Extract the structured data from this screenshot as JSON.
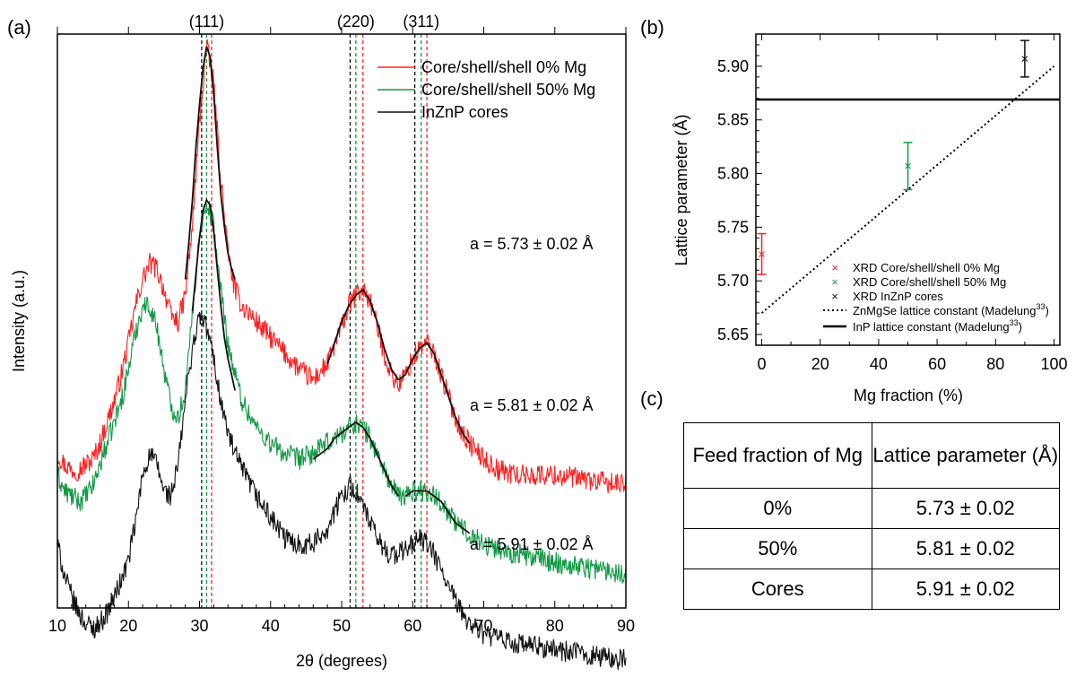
{
  "panel_labels": {
    "a": "(a)",
    "b": "(b)",
    "c": "(c)"
  },
  "colors": {
    "red": "#ff2020",
    "green": "#119944",
    "black": "#111111"
  },
  "chart_data": [
    {
      "type": "line",
      "panel": "(a)",
      "xlabel": "2θ (degrees)",
      "ylabel": "Intensity (a.u.)",
      "xlim": [
        10,
        90
      ],
      "x_ticks": [
        10,
        20,
        30,
        40,
        50,
        60,
        70,
        80,
        90
      ],
      "y_tick_labels": false,
      "top_labels": [
        "(111)",
        "(220)",
        "(311)"
      ],
      "reference_lines": {
        "black": [
          30.3,
          51.2,
          60.3
        ],
        "green": [
          31.0,
          52.0,
          61.2
        ],
        "red": [
          31.7,
          53.0,
          62.0
        ]
      },
      "legend": {
        "placement": "top-right",
        "entries": [
          "Core/shell/shell 0% Mg",
          "Core/shell/shell 50% Mg",
          "InZnP cores"
        ]
      },
      "annotations": [
        "a = 5.73 ± 0.02 Å",
        "a = 5.81 ± 0.02 Å",
        "a = 5.91 ± 0.02 Å"
      ],
      "series": [
        {
          "name": "Core/shell/shell 0% Mg",
          "color": "red",
          "noise": 1.3,
          "x": [
            10,
            11,
            12,
            13,
            14,
            15,
            16,
            17,
            18,
            19,
            20,
            21,
            22,
            23,
            24,
            25,
            26,
            27,
            28,
            29,
            30,
            31,
            32,
            33,
            34,
            35,
            36,
            38,
            40,
            42,
            44,
            46,
            48,
            50,
            51,
            52,
            53,
            54,
            55,
            56,
            57,
            58,
            59,
            60,
            61,
            62,
            63,
            64,
            65,
            66,
            67,
            68,
            70,
            72,
            75,
            80,
            85,
            90
          ],
          "y": [
            22,
            20,
            19,
            19,
            20,
            21,
            24,
            28,
            32,
            37,
            43,
            50,
            55,
            58,
            57,
            53,
            48,
            47,
            52,
            65,
            85,
            99,
            92,
            74,
            60,
            53,
            50,
            47,
            44,
            41,
            38,
            36,
            39,
            46,
            50,
            52,
            53,
            51,
            46,
            41,
            37,
            35,
            37,
            40,
            42,
            43,
            41,
            37,
            33,
            29,
            26,
            24,
            21,
            19,
            18,
            18,
            17,
            16
          ]
        },
        {
          "name": "Core/shell/shell 50% Mg",
          "color": "green",
          "noise": 1.3,
          "x": [
            10,
            11,
            12,
            13,
            14,
            15,
            16,
            17,
            18,
            19,
            20,
            21,
            22,
            23,
            24,
            25,
            26,
            27,
            28,
            29,
            30,
            31,
            32,
            33,
            34,
            35,
            36,
            38,
            40,
            42,
            44,
            46,
            48,
            50,
            51,
            52,
            53,
            54,
            55,
            56,
            57,
            58,
            59,
            60,
            61,
            62,
            63,
            64,
            65,
            66,
            67,
            68,
            70,
            72,
            75,
            80,
            85,
            90
          ],
          "y": [
            18,
            15,
            14,
            13,
            14,
            16,
            20,
            24,
            28,
            32,
            38,
            45,
            50,
            50,
            46,
            38,
            31,
            29,
            34,
            48,
            64,
            70,
            65,
            53,
            43,
            37,
            32,
            27,
            24,
            22,
            21,
            22,
            24,
            26,
            27,
            28,
            27,
            25,
            22,
            19,
            16,
            14,
            14,
            15,
            15,
            15,
            14,
            13,
            11,
            9,
            8,
            7,
            5,
            4,
            3,
            1.5,
            0.5,
            -0.5
          ]
        },
        {
          "name": "InZnP cores",
          "color": "black",
          "noise": 1.3,
          "x": [
            10,
            11,
            12,
            13,
            14,
            15,
            16,
            17,
            18,
            19,
            20,
            21,
            22,
            23,
            24,
            25,
            26,
            27,
            28,
            29,
            30,
            31,
            32,
            33,
            34,
            35,
            36,
            38,
            40,
            42,
            44,
            46,
            48,
            50,
            51,
            52,
            53,
            54,
            55,
            56,
            57,
            58,
            59,
            60,
            61,
            62,
            63,
            64,
            65,
            66,
            67,
            68,
            70,
            72,
            75,
            80,
            85,
            90
          ],
          "y": [
            5,
            -1,
            -5,
            -8,
            -10,
            -11,
            -10,
            -8,
            -5,
            -2,
            2,
            9,
            18,
            22,
            20,
            15,
            14,
            20,
            32,
            42,
            48,
            46,
            40,
            32,
            26,
            22,
            19,
            14,
            10,
            6,
            5,
            5,
            8,
            14,
            16,
            15,
            12,
            9,
            6,
            4,
            3,
            3,
            4,
            5,
            6,
            5,
            3,
            0,
            -3,
            -6,
            -8,
            -10,
            -12,
            -13,
            -14,
            -15,
            -16,
            -17
          ]
        }
      ],
      "fits": [
        {
          "color": "black",
          "x": [
            28,
            28.5,
            29,
            29.5,
            30,
            30.5,
            31,
            31.5,
            32,
            32.5,
            33,
            33.5,
            34,
            34.5,
            35
          ],
          "y": [
            55,
            62,
            70,
            80,
            88,
            95,
            99,
            97,
            90,
            80,
            71,
            65,
            60,
            57,
            55
          ]
        },
        {
          "color": "black",
          "x": [
            48,
            49,
            50,
            51,
            52,
            53,
            54,
            55,
            56,
            57,
            58
          ],
          "y": [
            39,
            43,
            47,
            50,
            52,
            53,
            51,
            47,
            42,
            38,
            36
          ]
        },
        {
          "color": "black",
          "x": [
            58,
            59,
            60,
            61,
            62,
            63,
            64,
            65,
            66,
            67,
            68
          ],
          "y": [
            36,
            37,
            40,
            42,
            43,
            41,
            37,
            33,
            29,
            26,
            24
          ]
        },
        {
          "color": "black",
          "x": [
            29,
            29.5,
            30,
            30.5,
            31,
            31.5,
            32,
            32.5,
            33,
            33.5,
            34,
            34.5,
            35
          ],
          "y": [
            49,
            56,
            63,
            68,
            70,
            69,
            64,
            57,
            50,
            44,
            40,
            37,
            34
          ]
        },
        {
          "color": "black",
          "x": [
            46,
            47,
            48,
            49,
            50,
            51,
            52,
            53,
            54,
            55,
            56,
            57,
            58
          ],
          "y": [
            21,
            22,
            23,
            25,
            26,
            27,
            28,
            27,
            25,
            22,
            19,
            16,
            14
          ]
        },
        {
          "color": "black",
          "x": [
            59,
            60,
            61,
            62,
            63,
            64,
            65,
            66,
            67,
            68
          ],
          "y": [
            14,
            15,
            15,
            15,
            14,
            13,
            11,
            9,
            8,
            7
          ]
        }
      ]
    },
    {
      "type": "scatter",
      "panel": "(b)",
      "xlabel": "Mg fraction (%)",
      "ylabel": "Lattice parameter (Å)",
      "xlim": [
        -2,
        102
      ],
      "ylim": [
        5.64,
        5.93
      ],
      "x_ticks": [
        0,
        20,
        40,
        60,
        80,
        100
      ],
      "y_ticks": [
        5.65,
        5.7,
        5.75,
        5.8,
        5.85,
        5.9
      ],
      "y_tick_labels": [
        "5.65",
        "5.70",
        "5.75",
        "5.80",
        "5.85",
        "5.90"
      ],
      "points": [
        {
          "label": "XRD Core/shell/shell 0% Mg",
          "x": 0,
          "y": 5.725,
          "err": 0.019,
          "color": "red"
        },
        {
          "label": "XRD Core/shell/shell 50% Mg",
          "x": 50,
          "y": 5.807,
          "err": 0.022,
          "color": "green"
        },
        {
          "label": "XRD InZnP cores",
          "x": 90,
          "y": 5.907,
          "err": 0.017,
          "color": "black"
        }
      ],
      "lines": [
        {
          "label": "ZnMgSe lattice constant (Madelung",
          "sup": "33",
          "close": ")",
          "style": "dotted",
          "x": [
            0,
            100
          ],
          "y": [
            5.67,
            5.9
          ]
        },
        {
          "label": "InP lattice constant (Madelung",
          "sup": "33",
          "close": ")",
          "style": "solid",
          "x": [
            -2,
            102
          ],
          "y": [
            5.869,
            5.869
          ]
        }
      ],
      "legend": {
        "placement": "bottom-right"
      }
    },
    {
      "type": "table",
      "panel": "(c)",
      "headers": [
        "Feed fraction of Mg",
        "Lattice parameter (Å)"
      ],
      "rows": [
        [
          "0%",
          "5.73 ± 0.02"
        ],
        [
          "50%",
          "5.81 ± 0.02"
        ],
        [
          "Cores",
          "5.91 ± 0.02"
        ]
      ]
    }
  ]
}
